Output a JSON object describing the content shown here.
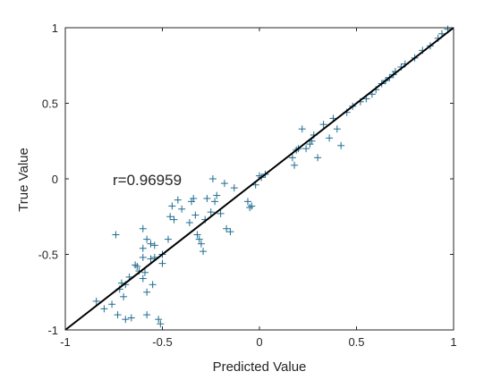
{
  "chart_data": {
    "type": "scatter",
    "xlabel": "Predicted Value",
    "ylabel": "True Value",
    "xlim": [
      -1,
      1
    ],
    "ylim": [
      -1,
      1
    ],
    "xticks": [
      "-1",
      "-0.5",
      "0",
      "0.5",
      "1"
    ],
    "yticks": [
      "-1",
      "-0.5",
      "0",
      "0.5",
      "1"
    ],
    "annotation": "r=0.96959",
    "grid": false,
    "marker": "plus",
    "marker_color": "#1f6b8e",
    "fit_line_color": "#000000",
    "fit_line": {
      "x": [
        -1,
        1
      ],
      "y": [
        -1,
        1
      ]
    },
    "series": [
      {
        "x": [
          -0.84,
          -0.8,
          -0.76,
          -0.73,
          -0.72,
          -0.71,
          -0.7,
          -0.69,
          -0.69,
          -0.67,
          -0.66,
          -0.64,
          -0.63,
          -0.62,
          -0.6,
          -0.6,
          -0.59,
          -0.58,
          -0.58,
          -0.56,
          -0.55,
          -0.54,
          -0.52,
          -0.51,
          -0.5,
          -0.74,
          -0.6,
          -0.6,
          -0.58,
          -0.56,
          -0.54,
          -0.5,
          -0.47,
          -0.46,
          -0.45,
          -0.44,
          -0.42,
          -0.4,
          -0.36,
          -0.35,
          -0.34,
          -0.33,
          -0.32,
          -0.31,
          -0.3,
          -0.29,
          -0.28,
          -0.27,
          -0.25,
          -0.24,
          -0.23,
          -0.22,
          -0.2,
          -0.18,
          -0.17,
          -0.15,
          -0.13,
          -0.05,
          -0.06,
          -0.04,
          -0.02,
          0.0,
          0.01,
          0.03,
          0.18,
          0.17,
          0.19,
          0.2,
          0.22,
          0.24,
          0.26,
          0.27,
          0.28,
          0.3,
          0.33,
          0.36,
          0.4,
          0.38,
          0.42,
          0.45,
          0.48,
          0.52,
          0.55,
          0.58,
          0.6,
          0.63,
          0.65,
          0.67,
          0.69,
          0.7,
          0.73,
          0.75,
          0.8,
          0.84,
          0.88,
          0.92,
          0.94,
          0.97
        ],
        "y": [
          -0.81,
          -0.86,
          -0.83,
          -0.9,
          -0.73,
          -0.69,
          -0.78,
          -0.7,
          -0.93,
          -0.65,
          -0.92,
          -0.57,
          -0.58,
          -0.61,
          -0.52,
          -0.66,
          -0.62,
          -0.75,
          -0.9,
          -0.53,
          -0.7,
          -0.52,
          -0.93,
          -0.96,
          -0.56,
          -0.37,
          -0.33,
          -0.46,
          -0.4,
          -0.43,
          -0.44,
          -0.5,
          -0.4,
          -0.25,
          -0.18,
          -0.27,
          -0.14,
          -0.2,
          -0.29,
          -0.15,
          -0.13,
          -0.24,
          -0.37,
          -0.4,
          -0.43,
          -0.48,
          -0.27,
          -0.13,
          -0.22,
          0.0,
          -0.15,
          -0.11,
          -0.23,
          -0.03,
          -0.33,
          -0.35,
          -0.06,
          -0.19,
          -0.15,
          -0.18,
          -0.04,
          0.02,
          0.01,
          0.03,
          0.09,
          0.14,
          0.19,
          0.2,
          0.33,
          0.2,
          0.23,
          0.25,
          0.29,
          0.14,
          0.36,
          0.27,
          0.33,
          0.4,
          0.22,
          0.44,
          0.48,
          0.51,
          0.53,
          0.56,
          0.59,
          0.63,
          0.65,
          0.67,
          0.69,
          0.71,
          0.74,
          0.76,
          0.8,
          0.85,
          0.88,
          0.93,
          0.96,
          0.99
        ]
      }
    ]
  }
}
